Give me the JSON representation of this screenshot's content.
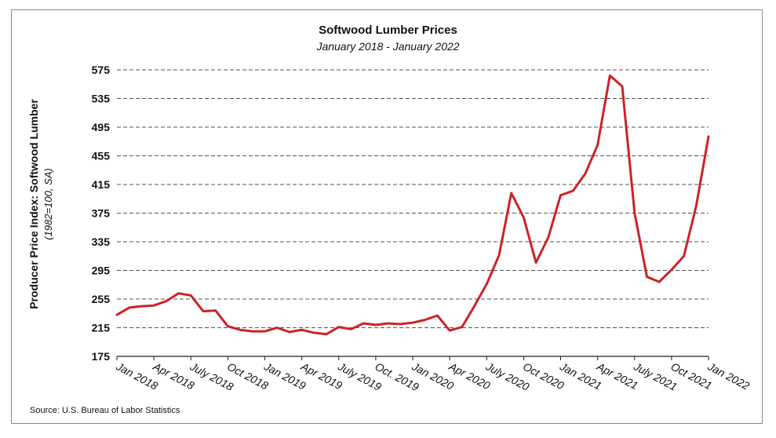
{
  "chart_data": {
    "type": "line",
    "title": "Softwood Lumber Prices",
    "subtitle": "January 2018 - January 2022",
    "ylabel": "Producer Price Index: Softwood Lumber",
    "ylabel_sub": "(1982=100, SA)",
    "xlabel": "",
    "source": "Source: U.S. Bureau of Labor Statistics",
    "ylim": [
      175,
      575
    ],
    "yticks": [
      175,
      215,
      255,
      295,
      335,
      375,
      415,
      455,
      495,
      535,
      575
    ],
    "grid": true,
    "line_color": "#cc2229",
    "x_tick_labels": [
      {
        "index": 0,
        "label": "Jan 2018"
      },
      {
        "index": 3,
        "label": "Apr 2018"
      },
      {
        "index": 6,
        "label": "July 2018"
      },
      {
        "index": 9,
        "label": "Oct 2018"
      },
      {
        "index": 12,
        "label": "Jan 2019"
      },
      {
        "index": 15,
        "label": "Apr 2019"
      },
      {
        "index": 18,
        "label": "July 2019"
      },
      {
        "index": 21,
        "label": "Oct. 2019"
      },
      {
        "index": 24,
        "label": "Jan 2020"
      },
      {
        "index": 27,
        "label": "Apr 2020"
      },
      {
        "index": 30,
        "label": "July 2020"
      },
      {
        "index": 33,
        "label": "Oct 2020"
      },
      {
        "index": 36,
        "label": "Jan 2021"
      },
      {
        "index": 39,
        "label": "Apr 2021"
      },
      {
        "index": 42,
        "label": "July 2021"
      },
      {
        "index": 45,
        "label": "Oct 2021"
      },
      {
        "index": 48,
        "label": "Jan 2022"
      }
    ],
    "series": [
      {
        "name": "Producer Price Index: Softwood Lumber",
        "values": [
          233,
          243,
          245,
          246,
          252,
          263,
          260,
          238,
          239,
          217,
          212,
          210,
          210,
          215,
          209,
          212,
          208,
          206,
          216,
          213,
          221,
          219,
          221,
          220,
          222,
          226,
          232,
          211,
          216,
          245,
          276,
          316,
          403,
          369,
          306,
          341,
          400,
          406,
          430,
          470,
          567,
          552,
          375,
          286,
          279,
          296,
          315,
          385,
          482
        ]
      }
    ]
  }
}
